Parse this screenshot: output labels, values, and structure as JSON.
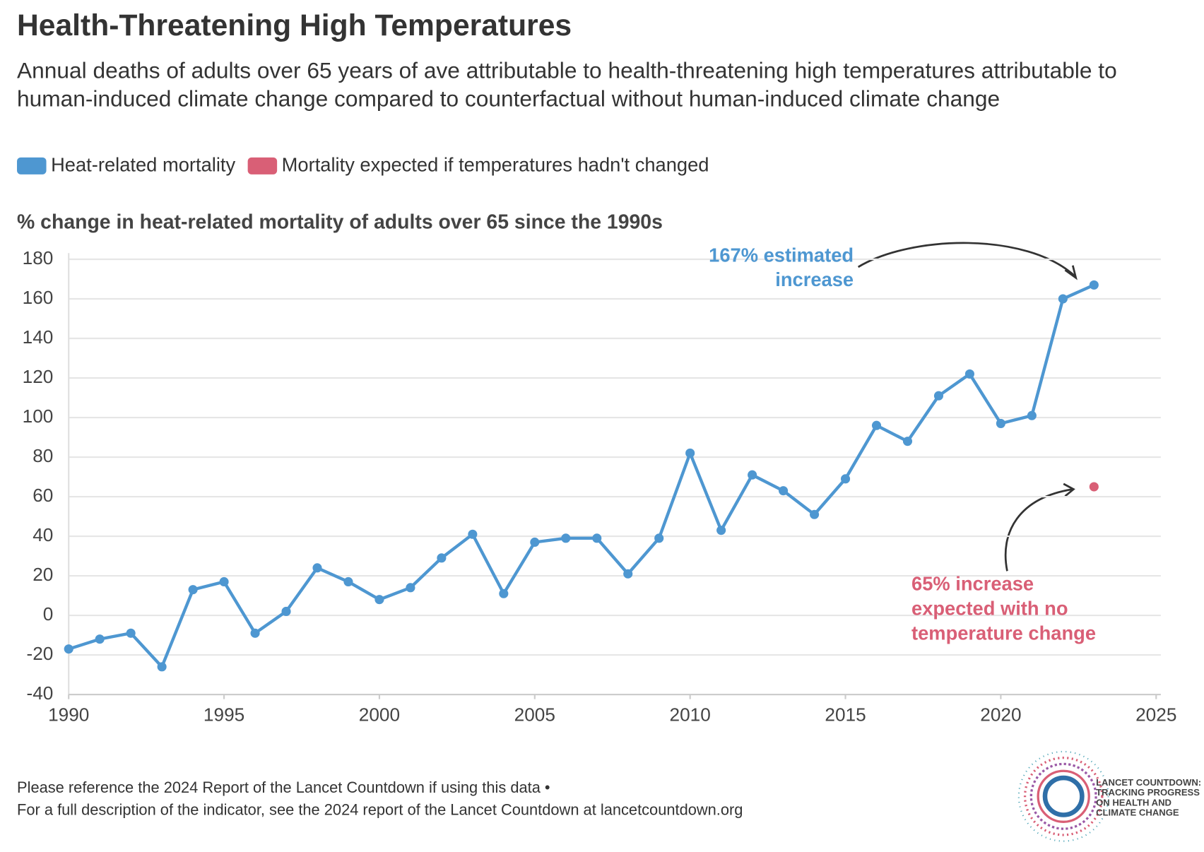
{
  "title": "Health-Threatening High Temperatures",
  "subtitle": "Annual deaths of adults over 65 years of ave attributable to health-threatening high temperatures attributable to human-induced climate change compared to counterfactual without human-induced climate change",
  "chart_data": {
    "type": "line",
    "y_label": "% change in heat-related mortality of adults over 65 since the 1990s",
    "x": [
      1990,
      1991,
      1992,
      1993,
      1994,
      1995,
      1996,
      1997,
      1998,
      1999,
      2000,
      2001,
      2002,
      2003,
      2004,
      2005,
      2006,
      2007,
      2008,
      2009,
      2010,
      2011,
      2012,
      2013,
      2014,
      2015,
      2016,
      2017,
      2018,
      2019,
      2020,
      2021,
      2022,
      2023
    ],
    "series": [
      {
        "name": "Heat-related mortality",
        "color": "#4e97d1",
        "values": [
          -17,
          -12,
          -9,
          -26,
          13,
          17,
          -9,
          2,
          24,
          17,
          8,
          14,
          29,
          41,
          11,
          37,
          39,
          39,
          21,
          39,
          82,
          43,
          71,
          63,
          51,
          69,
          96,
          88,
          111,
          122,
          97,
          101,
          160,
          167
        ]
      },
      {
        "name": "Mortality expected if temperatures hadn't changed",
        "color": "#d95f76",
        "values": [
          null,
          null,
          null,
          null,
          null,
          null,
          null,
          null,
          null,
          null,
          null,
          null,
          null,
          null,
          null,
          null,
          null,
          null,
          null,
          null,
          null,
          null,
          null,
          null,
          null,
          null,
          null,
          null,
          null,
          null,
          null,
          null,
          null,
          65
        ]
      }
    ],
    "xlim": [
      1990,
      2025
    ],
    "xticks": [
      1990,
      1995,
      2000,
      2005,
      2010,
      2015,
      2020,
      2025
    ],
    "ylim": [
      -40,
      180
    ],
    "yticks": [
      -40,
      -20,
      0,
      20,
      40,
      60,
      80,
      100,
      120,
      140,
      160,
      180
    ],
    "grid": true,
    "annotations": [
      "167% estimated increase",
      "65% increase expected with no temperature change"
    ]
  },
  "footer": [
    "Please reference the 2024 Report of the Lancet Countdown if using this data •",
    "For a full description of the indicator, see the 2024 report of the Lancet Countdown at lancetcountdown.org"
  ],
  "logo": [
    "LANCET COUNTDOWN:",
    "TRACKING PROGRESS",
    "ON HEALTH AND",
    "CLIMATE CHANGE"
  ]
}
